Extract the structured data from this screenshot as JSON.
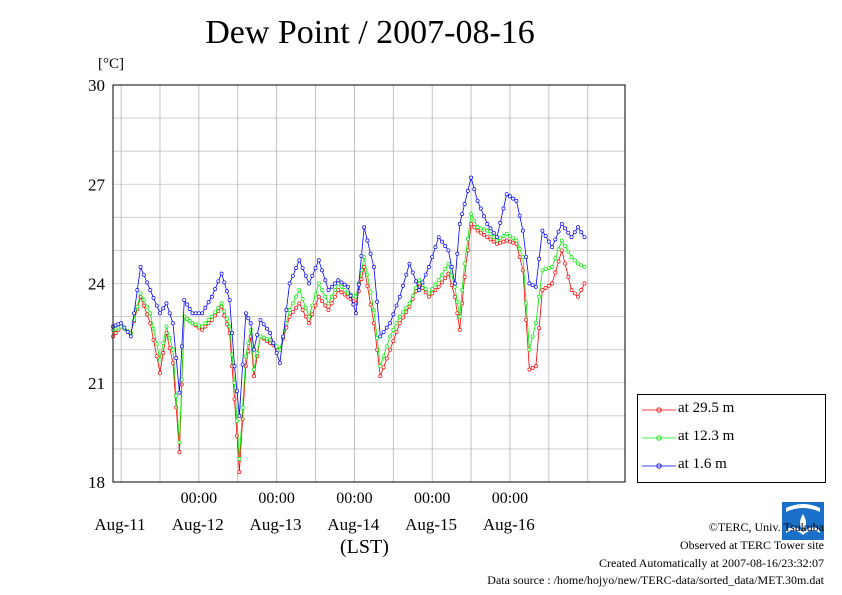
{
  "chart_data": {
    "type": "line",
    "title": "Dew Point / 2007-08-16",
    "y_unit": "[°C]",
    "xlabel": "(LST)",
    "ylim": [
      18,
      30
    ],
    "y_ticks": [
      18,
      21,
      24,
      27,
      30
    ],
    "xlim": [
      "2007-08-10T09:30",
      "2007-08-16T23:30"
    ],
    "x_time_ticks": [
      {
        "at": "2007-08-11T12:00",
        "label": "00:00"
      },
      {
        "at": "2007-08-12T12:00",
        "label": "00:00"
      },
      {
        "at": "2007-08-13T12:00",
        "label": "00:00"
      },
      {
        "at": "2007-08-14T12:00",
        "label": "00:00"
      },
      {
        "at": "2007-08-15T12:00",
        "label": "00:00"
      }
    ],
    "x_day_labels": [
      {
        "at": "2007-08-11T00:00",
        "label": "Aug-11"
      },
      {
        "at": "2007-08-12T00:00",
        "label": "Aug-12"
      },
      {
        "at": "2007-08-13T00:00",
        "label": "Aug-13"
      },
      {
        "at": "2007-08-14T00:00",
        "label": "Aug-14"
      },
      {
        "at": "2007-08-15T00:00",
        "label": "Aug-15"
      },
      {
        "at": "2007-08-16T00:00",
        "label": "Aug-16"
      }
    ],
    "grid": true,
    "legend_position": "right-bottom",
    "series": [
      {
        "name": "at 29.5 m",
        "color": "#ff0000",
        "points": [
          [
            "2007-08-10T09:30",
            22.4
          ],
          [
            "2007-08-10T12:00",
            22.7
          ],
          [
            "2007-08-10T15:00",
            22.5
          ],
          [
            "2007-08-10T18:00",
            23.6
          ],
          [
            "2007-08-10T21:00",
            22.8
          ],
          [
            "2007-08-11T00:00",
            21.3
          ],
          [
            "2007-08-11T02:00",
            22.5
          ],
          [
            "2007-08-11T04:00",
            21.6
          ],
          [
            "2007-08-11T06:00",
            18.9
          ],
          [
            "2007-08-11T07:30",
            23.0
          ],
          [
            "2007-08-11T10:00",
            22.8
          ],
          [
            "2007-08-11T13:00",
            22.6
          ],
          [
            "2007-08-11T16:00",
            22.9
          ],
          [
            "2007-08-11T19:00",
            23.3
          ],
          [
            "2007-08-11T21:30",
            22.5
          ],
          [
            "2007-08-11T23:00",
            20.5
          ],
          [
            "2007-08-12T00:30",
            18.3
          ],
          [
            "2007-08-12T02:30",
            21.5
          ],
          [
            "2007-08-12T04:00",
            22.4
          ],
          [
            "2007-08-12T05:00",
            21.2
          ],
          [
            "2007-08-12T07:00",
            22.4
          ],
          [
            "2007-08-12T10:00",
            22.2
          ],
          [
            "2007-08-12T13:00",
            22.0
          ],
          [
            "2007-08-12T16:00",
            23.0
          ],
          [
            "2007-08-12T19:00",
            23.4
          ],
          [
            "2007-08-12T22:00",
            22.8
          ],
          [
            "2007-08-13T01:00",
            23.6
          ],
          [
            "2007-08-13T04:00",
            23.2
          ],
          [
            "2007-08-13T07:00",
            23.8
          ],
          [
            "2007-08-13T10:00",
            23.6
          ],
          [
            "2007-08-13T12:30",
            23.4
          ],
          [
            "2007-08-13T15:00",
            24.5
          ],
          [
            "2007-08-13T18:00",
            22.8
          ],
          [
            "2007-08-13T20:00",
            21.2
          ],
          [
            "2007-08-13T23:00",
            22.0
          ],
          [
            "2007-08-14T02:00",
            22.8
          ],
          [
            "2007-08-14T05:00",
            23.3
          ],
          [
            "2007-08-14T08:00",
            24.0
          ],
          [
            "2007-08-14T11:00",
            23.6
          ],
          [
            "2007-08-14T14:00",
            23.9
          ],
          [
            "2007-08-14T17:00",
            24.3
          ],
          [
            "2007-08-14T19:00",
            23.6
          ],
          [
            "2007-08-14T20:30",
            22.6
          ],
          [
            "2007-08-14T22:00",
            24.2
          ],
          [
            "2007-08-15T00:00",
            25.8
          ],
          [
            "2007-08-15T02:00",
            25.6
          ],
          [
            "2007-08-15T05:00",
            25.4
          ],
          [
            "2007-08-15T08:00",
            25.2
          ],
          [
            "2007-08-15T11:00",
            25.3
          ],
          [
            "2007-08-15T14:00",
            25.2
          ],
          [
            "2007-08-15T16:00",
            24.4
          ],
          [
            "2007-08-15T18:00",
            21.4
          ],
          [
            "2007-08-15T20:00",
            21.5
          ],
          [
            "2007-08-15T22:00",
            23.8
          ],
          [
            "2007-08-16T01:00",
            24.0
          ],
          [
            "2007-08-16T04:00",
            25.0
          ],
          [
            "2007-08-16T07:00",
            23.8
          ],
          [
            "2007-08-16T09:00",
            23.6
          ],
          [
            "2007-08-16T11:00",
            24.0
          ]
        ]
      },
      {
        "name": "at 12.3 m",
        "color": "#00ee00",
        "points": [
          [
            "2007-08-10T09:30",
            22.6
          ],
          [
            "2007-08-10T12:00",
            22.7
          ],
          [
            "2007-08-10T15:00",
            22.5
          ],
          [
            "2007-08-10T18:00",
            23.7
          ],
          [
            "2007-08-10T21:00",
            23.1
          ],
          [
            "2007-08-11T00:00",
            21.7
          ],
          [
            "2007-08-11T02:00",
            22.7
          ],
          [
            "2007-08-11T04:00",
            22.0
          ],
          [
            "2007-08-11T06:00",
            19.2
          ],
          [
            "2007-08-11T07:30",
            23.0
          ],
          [
            "2007-08-11T10:00",
            22.8
          ],
          [
            "2007-08-11T13:00",
            22.7
          ],
          [
            "2007-08-11T16:00",
            23.0
          ],
          [
            "2007-08-11T19:00",
            23.4
          ],
          [
            "2007-08-11T21:30",
            22.7
          ],
          [
            "2007-08-11T23:00",
            21.0
          ],
          [
            "2007-08-12T00:30",
            18.7
          ],
          [
            "2007-08-12T02:30",
            21.8
          ],
          [
            "2007-08-12T04:00",
            22.6
          ],
          [
            "2007-08-12T05:00",
            21.4
          ],
          [
            "2007-08-12T07:00",
            22.4
          ],
          [
            "2007-08-12T10:00",
            22.3
          ],
          [
            "2007-08-12T13:00",
            22.0
          ],
          [
            "2007-08-12T16:00",
            23.2
          ],
          [
            "2007-08-12T19:00",
            23.8
          ],
          [
            "2007-08-12T22:00",
            23.0
          ],
          [
            "2007-08-13T01:00",
            24.0
          ],
          [
            "2007-08-13T04:00",
            23.4
          ],
          [
            "2007-08-13T07:00",
            24.0
          ],
          [
            "2007-08-13T10:00",
            23.7
          ],
          [
            "2007-08-13T12:30",
            23.6
          ],
          [
            "2007-08-13T15:00",
            24.8
          ],
          [
            "2007-08-13T18:00",
            23.2
          ],
          [
            "2007-08-13T20:00",
            21.5
          ],
          [
            "2007-08-13T23:00",
            22.4
          ],
          [
            "2007-08-14T02:00",
            23.0
          ],
          [
            "2007-08-14T05:00",
            23.4
          ],
          [
            "2007-08-14T08:00",
            24.1
          ],
          [
            "2007-08-14T11:00",
            23.7
          ],
          [
            "2007-08-14T14:00",
            24.1
          ],
          [
            "2007-08-14T17:00",
            24.6
          ],
          [
            "2007-08-14T19:00",
            23.9
          ],
          [
            "2007-08-14T20:30",
            23.0
          ],
          [
            "2007-08-14T22:00",
            24.6
          ],
          [
            "2007-08-15T00:00",
            26.1
          ],
          [
            "2007-08-15T02:00",
            25.7
          ],
          [
            "2007-08-15T05:00",
            25.6
          ],
          [
            "2007-08-15T08:00",
            25.3
          ],
          [
            "2007-08-15T11:00",
            25.5
          ],
          [
            "2007-08-15T14:00",
            25.3
          ],
          [
            "2007-08-15T16:00",
            24.8
          ],
          [
            "2007-08-15T18:00",
            22.0
          ],
          [
            "2007-08-15T20:00",
            22.8
          ],
          [
            "2007-08-15T22:00",
            24.4
          ],
          [
            "2007-08-16T01:00",
            24.5
          ],
          [
            "2007-08-16T04:00",
            25.3
          ],
          [
            "2007-08-16T07:00",
            24.8
          ],
          [
            "2007-08-16T09:00",
            24.6
          ],
          [
            "2007-08-16T11:00",
            24.5
          ]
        ]
      },
      {
        "name": "at 1.6 m",
        "color": "#0000ff",
        "points": [
          [
            "2007-08-10T09:30",
            22.7
          ],
          [
            "2007-08-10T12:00",
            22.8
          ],
          [
            "2007-08-10T15:00",
            22.4
          ],
          [
            "2007-08-10T18:00",
            24.5
          ],
          [
            "2007-08-10T21:00",
            23.8
          ],
          [
            "2007-08-11T00:00",
            23.1
          ],
          [
            "2007-08-11T02:00",
            23.4
          ],
          [
            "2007-08-11T04:00",
            22.8
          ],
          [
            "2007-08-11T06:00",
            20.7
          ],
          [
            "2007-08-11T07:30",
            23.5
          ],
          [
            "2007-08-11T10:00",
            23.1
          ],
          [
            "2007-08-11T13:00",
            23.1
          ],
          [
            "2007-08-11T16:00",
            23.6
          ],
          [
            "2007-08-11T19:00",
            24.3
          ],
          [
            "2007-08-11T21:30",
            23.5
          ],
          [
            "2007-08-11T23:00",
            21.5
          ],
          [
            "2007-08-12T00:30",
            20.0
          ],
          [
            "2007-08-12T02:30",
            23.1
          ],
          [
            "2007-08-12T04:00",
            22.8
          ],
          [
            "2007-08-12T05:00",
            22.0
          ],
          [
            "2007-08-12T07:00",
            22.9
          ],
          [
            "2007-08-12T10:00",
            22.5
          ],
          [
            "2007-08-12T13:00",
            21.6
          ],
          [
            "2007-08-12T16:00",
            24.0
          ],
          [
            "2007-08-12T19:00",
            24.7
          ],
          [
            "2007-08-12T22:00",
            24.0
          ],
          [
            "2007-08-13T01:00",
            24.7
          ],
          [
            "2007-08-13T04:00",
            23.8
          ],
          [
            "2007-08-13T07:00",
            24.1
          ],
          [
            "2007-08-13T10:00",
            23.9
          ],
          [
            "2007-08-13T12:30",
            23.1
          ],
          [
            "2007-08-13T15:00",
            25.7
          ],
          [
            "2007-08-13T18:00",
            24.5
          ],
          [
            "2007-08-13T20:00",
            22.4
          ],
          [
            "2007-08-13T23:00",
            22.8
          ],
          [
            "2007-08-14T02:00",
            23.6
          ],
          [
            "2007-08-14T05:00",
            24.6
          ],
          [
            "2007-08-14T08:00",
            23.8
          ],
          [
            "2007-08-14T11:00",
            24.5
          ],
          [
            "2007-08-14T14:00",
            25.4
          ],
          [
            "2007-08-14T17:00",
            25.0
          ],
          [
            "2007-08-14T19:00",
            24.0
          ],
          [
            "2007-08-14T20:30",
            25.8
          ],
          [
            "2007-08-14T22:00",
            26.4
          ],
          [
            "2007-08-15T00:00",
            27.2
          ],
          [
            "2007-08-15T02:00",
            26.5
          ],
          [
            "2007-08-15T05:00",
            25.8
          ],
          [
            "2007-08-15T08:00",
            25.4
          ],
          [
            "2007-08-15T11:00",
            26.7
          ],
          [
            "2007-08-15T14:00",
            26.5
          ],
          [
            "2007-08-15T16:00",
            25.6
          ],
          [
            "2007-08-15T18:00",
            24.0
          ],
          [
            "2007-08-15T20:00",
            23.9
          ],
          [
            "2007-08-15T22:00",
            25.6
          ],
          [
            "2007-08-16T01:00",
            25.1
          ],
          [
            "2007-08-16T04:00",
            25.8
          ],
          [
            "2007-08-16T07:00",
            25.4
          ],
          [
            "2007-08-16T09:00",
            25.7
          ],
          [
            "2007-08-16T11:00",
            25.4
          ]
        ]
      }
    ]
  },
  "credits": {
    "copyright": "©TERC, Univ. Tsukuba",
    "observed": "Observed at TERC Tower site",
    "created": "Created Automatically at 2007-08-16/23:32:07",
    "source": "Data source : /home/hojyo/new/TERC-data/sorted_data/MET.30m.dat",
    "logo_text": "TERC"
  }
}
